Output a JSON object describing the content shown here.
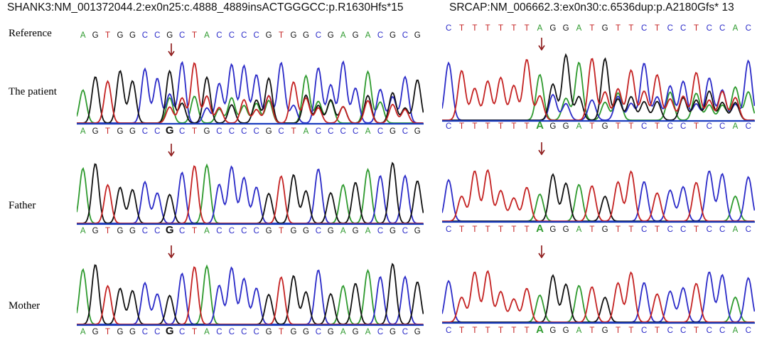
{
  "colors": {
    "A": "#2e9a2e",
    "C": "#2b2bc8",
    "G": "#111111",
    "T": "#c42222",
    "arrow": "#8b1515",
    "baseline": "#1d3fbf"
  },
  "left": {
    "title": "SHANK3:NM_001372044.2:ex0n25:c.4888_4889insACTGGGCC:p.R1630Hfs*15",
    "labels": {
      "reference": "Reference",
      "patient": "The patient",
      "father": "Father",
      "mother": "Mother"
    },
    "sequences": {
      "reference": "AGTGGCCGCTACCCCGTGGCGAGACGCG",
      "patient": "AGTGGCCGCTGCCCCGCTACCCCACGCG",
      "father": "AGTGGCCGCTACCCCGTGGCGAGACGCG",
      "mother": "AGTGGCCGCTACCCCGTGGCGAGACGCG"
    },
    "highlight_index": 7,
    "arrow_icon": "down-arrow-icon"
  },
  "right": {
    "title": "SRCAP:NM_006662.3:ex0n30:c.6536dup:p.A2180Gfs* 13",
    "sequences": {
      "reference": "CTTTTTTAGGATGTTCTCCTCCAC",
      "patient": "CTTTTTTAGGATGTTCTCCTCCAC",
      "father": "CTTTTTTAGGATGTTCTCCTCCAC",
      "mother": "CTTTTTTAGGATGTTCTCCTCCAC"
    },
    "highlight_index": 7,
    "arrow_icon": "down-arrow-icon"
  }
}
